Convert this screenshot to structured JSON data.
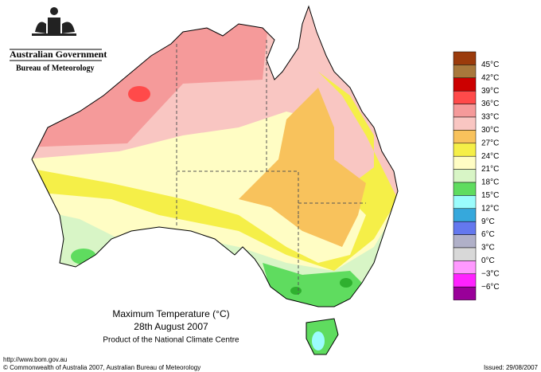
{
  "header": {
    "government": "Australian Government",
    "bureau": "Bureau of Meteorology"
  },
  "map": {
    "title": "Maximum Temperature (°C)",
    "date": "28th August 2007",
    "product": "Product of the National Climate Centre"
  },
  "legend": {
    "colors": [
      "#9b3b0c",
      "#a8783c",
      "#cc0000",
      "#ff4a4a",
      "#f59a9a",
      "#f9c6c2",
      "#f8c25c",
      "#f5ef48",
      "#fffdc4",
      "#d8f5c6",
      "#5fdc5f",
      "#9bfcfc",
      "#36a8dc",
      "#6478ee",
      "#b0b0c8",
      "#d8d8d8",
      "#ff99ff",
      "#ff22ff",
      "#990099"
    ],
    "labels": [
      "45°C",
      "42°C",
      "39°C",
      "36°C",
      "33°C",
      "30°C",
      "27°C",
      "24°C",
      "21°C",
      "18°C",
      "15°C",
      "12°C",
      "9°C",
      "6°C",
      "3°C",
      "0°C",
      "−3°C",
      "−6°C"
    ]
  },
  "footer": {
    "url": "http://www.bom.gov.au",
    "copyright": "© Commonwealth of Australia 2007, Australian Bureau of Meteorology",
    "issued": "Issued: 29/08/2007"
  }
}
